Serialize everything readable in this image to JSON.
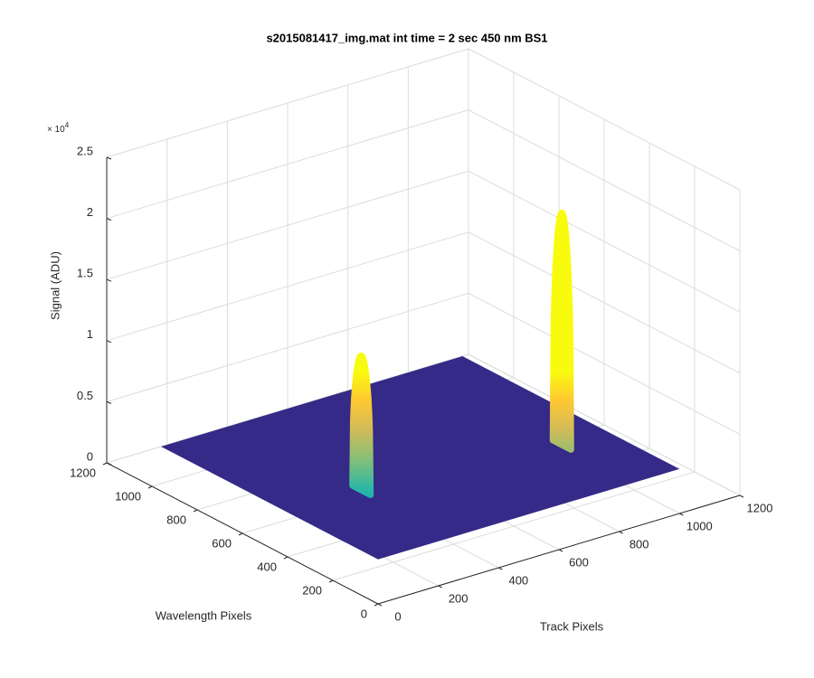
{
  "chart_data": {
    "type": "surface",
    "title": "s2015081417_img.mat int time = 2 sec  450 nm BS1",
    "xlabel": "Track Pixels",
    "ylabel": "Wavelength Pixels",
    "zlabel": "Signal (ADU)",
    "z_multiplier": {
      "base": "× 10",
      "exponent": "4"
    },
    "xlim": [
      0,
      1200
    ],
    "ylim": [
      0,
      1200
    ],
    "zlim": [
      0,
      25000
    ],
    "xticks": [
      0,
      200,
      400,
      600,
      800,
      1000,
      1200
    ],
    "yticks": [
      0,
      200,
      400,
      600,
      800,
      1000,
      1200
    ],
    "zticks": [
      0,
      {
        "value": 5000,
        "label": "0.5"
      },
      {
        "value": 10000,
        "label": "1"
      },
      {
        "value": 15000,
        "label": "1.5"
      },
      {
        "value": 20000,
        "label": "2"
      },
      {
        "value": 25000,
        "label": "2.5"
      }
    ],
    "grid": true,
    "colormap": [
      "#352a87",
      "#0f5cdd",
      "#1481d6",
      "#06a4ca",
      "#2eb7a4",
      "#87bf77",
      "#d1bb59",
      "#fec832",
      "#f9fb0e"
    ],
    "surface": {
      "x_range": [
        180,
        1180
      ],
      "y_range": [
        240,
        1200
      ],
      "base_value": 0,
      "peaks": [
        {
          "track": 425,
          "wavelength_range": [
            600,
            680
          ],
          "height": 11000
        },
        {
          "track": 1030,
          "wavelength_range": [
            520,
            600
          ],
          "height": 19000
        }
      ]
    }
  }
}
